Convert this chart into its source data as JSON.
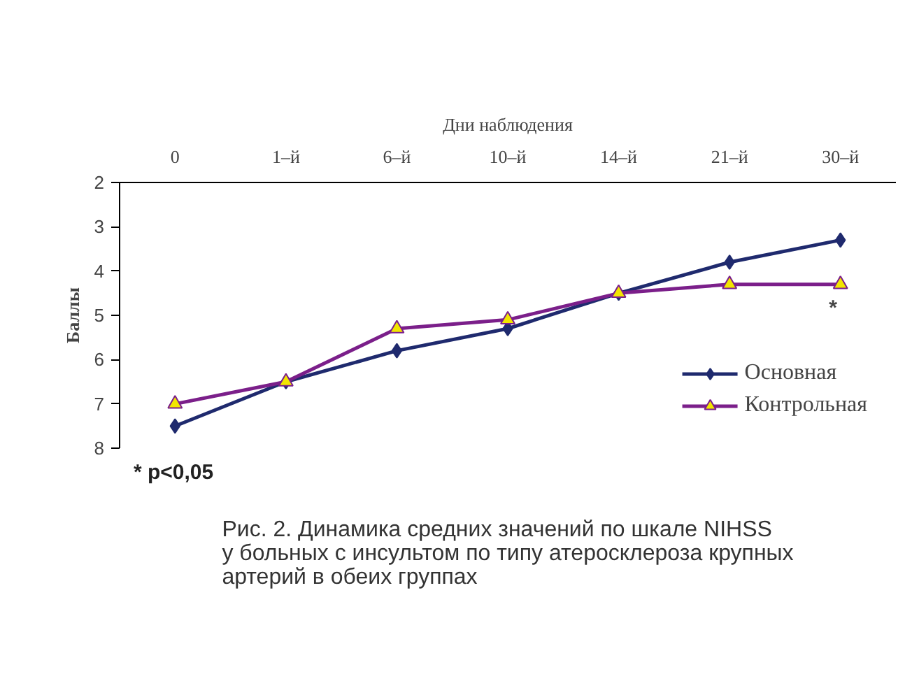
{
  "chart_data": {
    "type": "line",
    "title": "Рис. 2. Динамика средних значений по шкале NIHSS\nу больных с инсультом по типу атеросклероза крупных\nартерий в обеих группах",
    "xlabel": "Дни наблюдения",
    "ylabel": "Баллы",
    "categories": [
      "0",
      "1–й",
      "6–й",
      "10–й",
      "14–й",
      "21–й",
      "30–й"
    ],
    "series": [
      {
        "name": "Основная",
        "color": "#1f2a6e",
        "marker": "diamond",
        "values": [
          7.5,
          6.5,
          5.8,
          5.3,
          4.5,
          3.8,
          3.3
        ]
      },
      {
        "name": "Контрольная",
        "color": "#7b1f8a",
        "marker": "triangle",
        "values": [
          7.0,
          6.5,
          5.3,
          5.1,
          4.5,
          4.3,
          4.3
        ]
      }
    ],
    "ylim": [
      8,
      2
    ],
    "yticks": [
      2,
      3,
      4,
      5,
      6,
      7,
      8
    ],
    "grid": false,
    "legend": "bottom right",
    "annotations": [
      "*",
      "* p<0,05"
    ]
  }
}
